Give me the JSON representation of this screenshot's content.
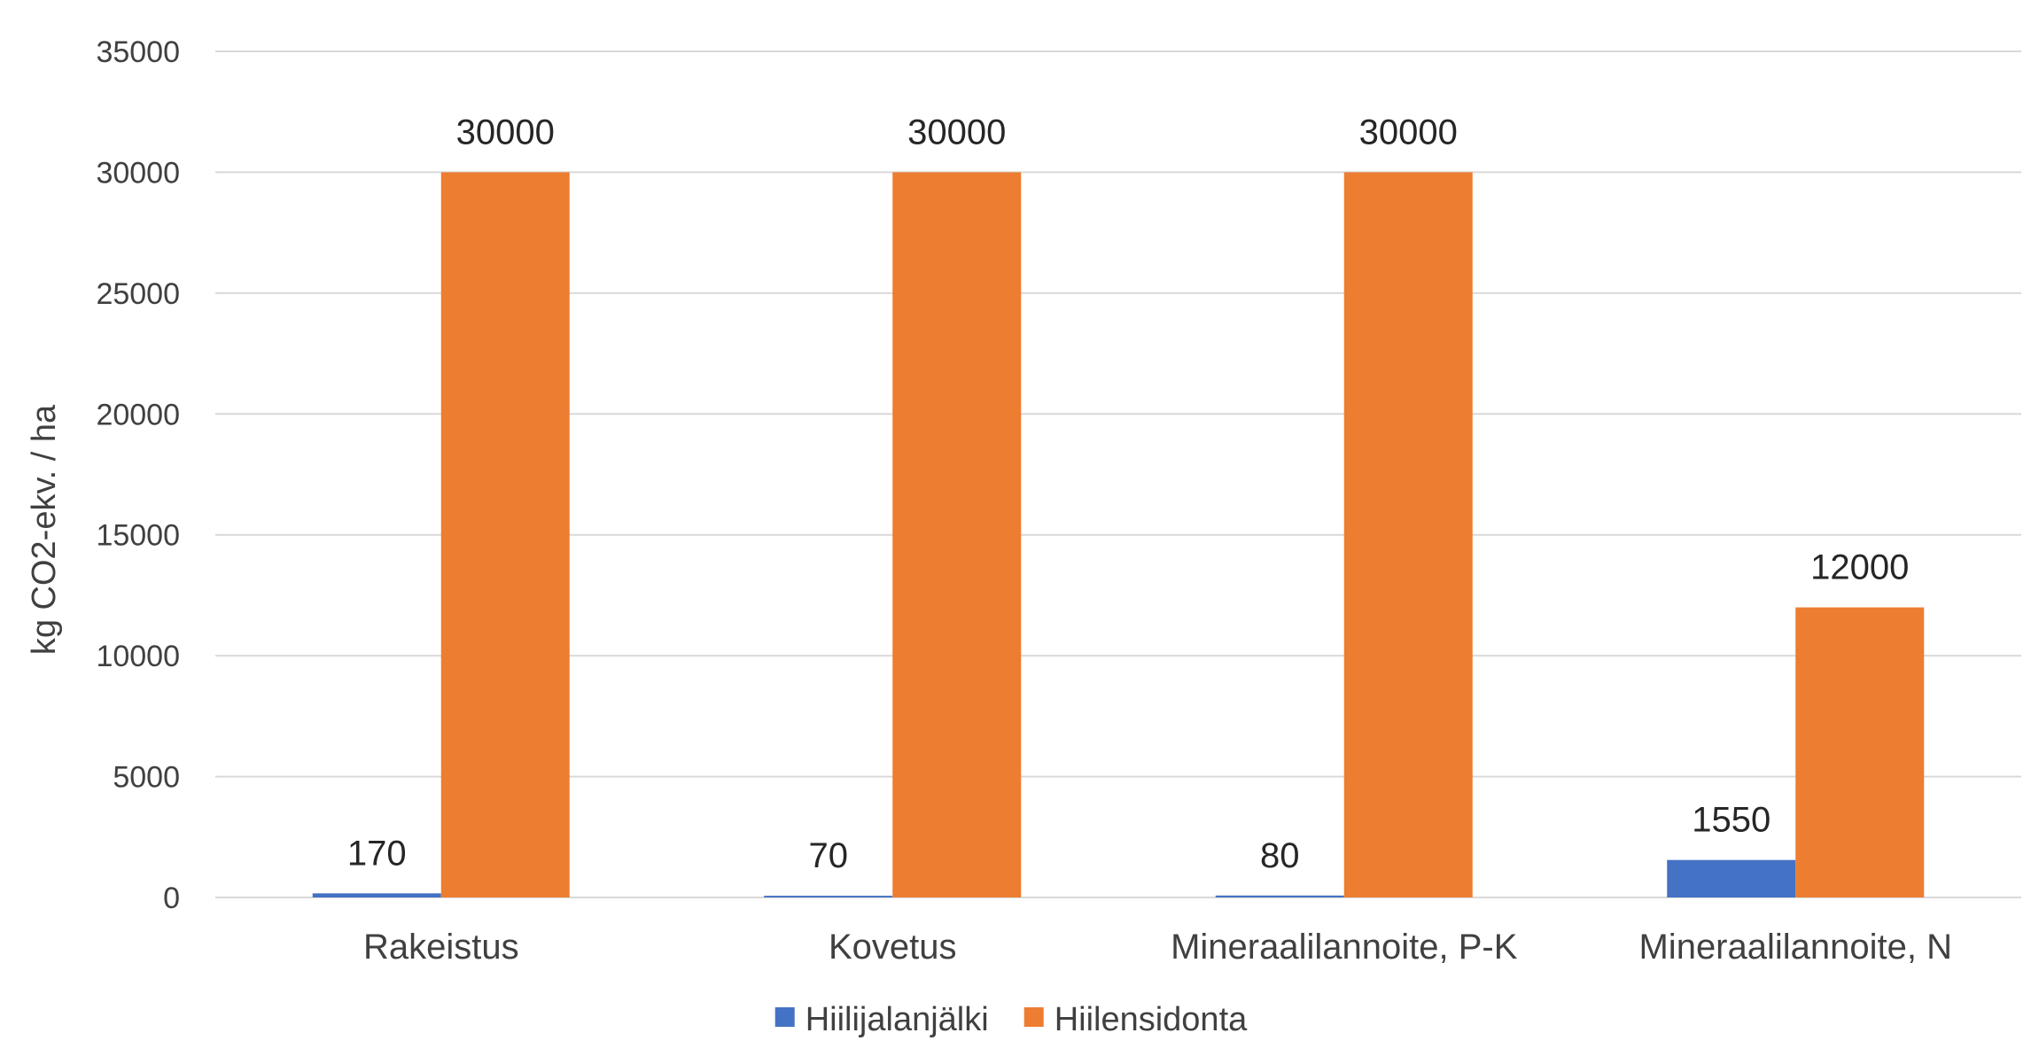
{
  "chart_data": {
    "type": "bar",
    "categories": [
      "Rakeistus",
      "Kovetus",
      "Mineraalilannoite, P-K",
      "Mineraalilannoite, N"
    ],
    "series": [
      {
        "name": "Hiilijalanjälki",
        "values": [
          170,
          70,
          80,
          1550
        ],
        "labels": [
          "170",
          "70",
          "80",
          "1550"
        ],
        "color": "#4472C4"
      },
      {
        "name": "Hiilensidonta",
        "values": [
          30000,
          30000,
          30000,
          12000
        ],
        "labels": [
          "30000",
          "30000",
          "30000",
          "12000"
        ],
        "color": "#ED7D31"
      }
    ],
    "title": "",
    "xlabel": "",
    "ylabel": "kg CO2-ekv. / ha",
    "ylim": [
      0,
      35000
    ],
    "yticks": [
      0,
      5000,
      10000,
      15000,
      20000,
      25000,
      30000,
      35000
    ],
    "ytick_labels": [
      "0",
      "5000",
      "10000",
      "15000",
      "20000",
      "25000",
      "30000",
      "35000"
    ],
    "grid": true,
    "legend_position": "bottom",
    "gridline_color": "#D9D9D9"
  }
}
